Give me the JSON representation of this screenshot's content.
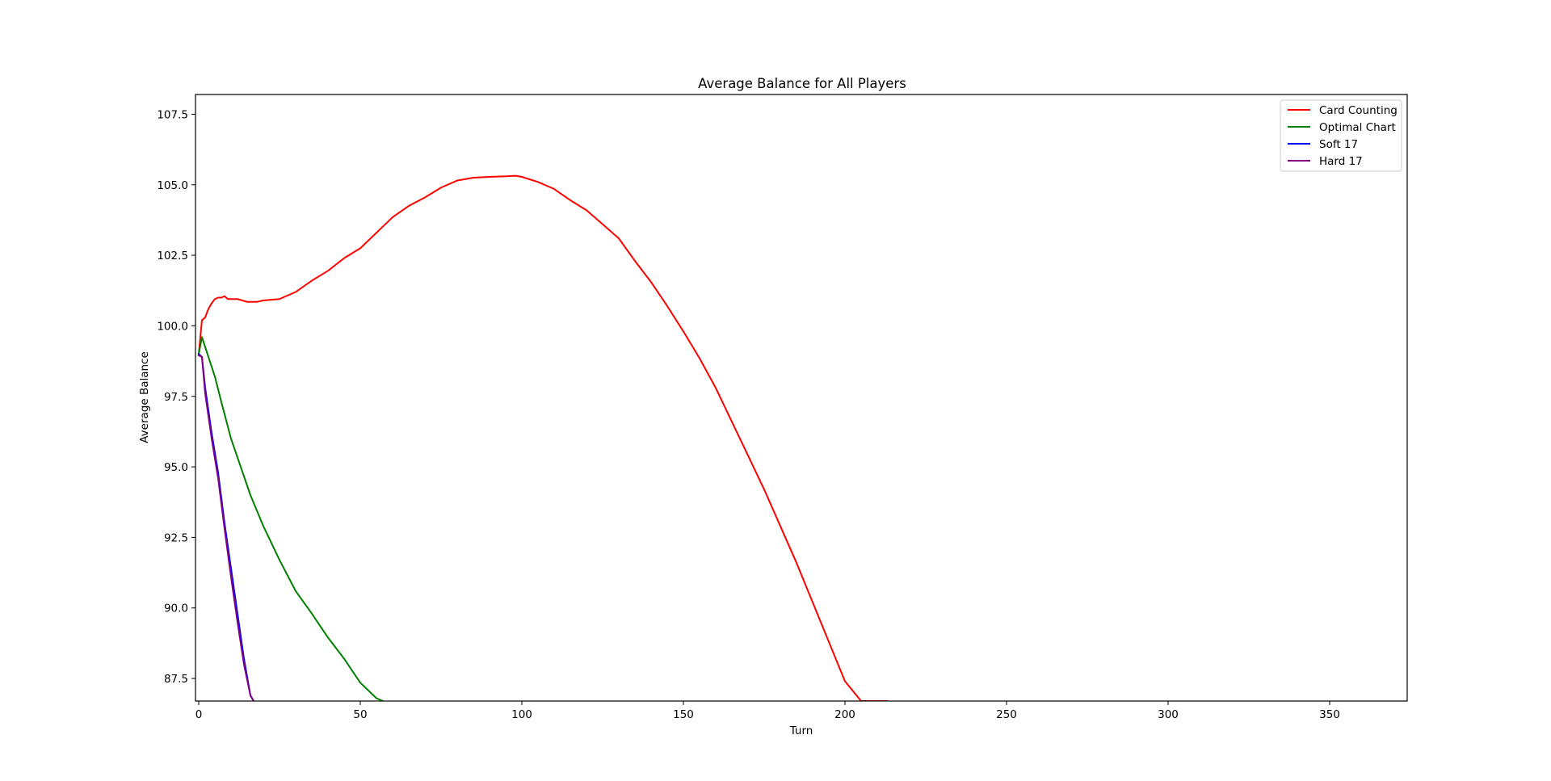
{
  "chart_data": {
    "type": "line",
    "title": "Average Balance for All Players",
    "xlabel": "Turn",
    "ylabel": "Average Balance",
    "xlim": [
      -1,
      374
    ],
    "ylim": [
      86.7,
      108.2
    ],
    "xticks": [
      0,
      50,
      100,
      150,
      200,
      250,
      300,
      350
    ],
    "yticks": [
      87.5,
      90.0,
      92.5,
      95.0,
      97.5,
      100.0,
      102.5,
      105.0,
      107.5
    ],
    "xtick_labels": [
      "0",
      "50",
      "100",
      "150",
      "200",
      "250",
      "300",
      "350"
    ],
    "ytick_labels": [
      "87.5",
      "90.0",
      "92.5",
      "95.0",
      "97.5",
      "100.0",
      "102.5",
      "105.0",
      "107.5"
    ],
    "grid": false,
    "legend_position": "top-right",
    "series": [
      {
        "name": "Card Counting",
        "color": "#ff0000",
        "x": [
          0,
          1,
          2,
          3,
          4,
          5,
          6,
          7,
          8,
          9,
          10,
          12,
          15,
          18,
          20,
          25,
          28,
          30,
          35,
          40,
          45,
          50,
          55,
          60,
          65,
          70,
          75,
          80,
          85,
          90,
          95,
          98,
          100,
          105,
          110,
          115,
          120,
          125,
          130,
          135,
          140,
          145,
          150,
          155,
          160,
          165,
          170,
          175,
          180,
          185,
          190,
          195,
          200,
          205,
          210,
          213
        ],
        "y": [
          99.0,
          100.2,
          100.3,
          100.6,
          100.8,
          100.95,
          101.0,
          101.0,
          101.05,
          100.95,
          100.95,
          100.95,
          100.85,
          100.85,
          100.9,
          100.95,
          101.1,
          101.2,
          101.6,
          101.95,
          102.4,
          102.75,
          103.3,
          103.85,
          104.25,
          104.55,
          104.9,
          105.15,
          105.25,
          105.28,
          105.3,
          105.32,
          105.28,
          105.1,
          104.85,
          104.45,
          104.1,
          103.6,
          103.1,
          102.3,
          101.55,
          100.7,
          99.8,
          98.85,
          97.8,
          96.6,
          95.4,
          94.2,
          92.9,
          91.6,
          90.2,
          88.8,
          87.4,
          86.7,
          86.7,
          86.7
        ]
      },
      {
        "name": "Optimal Chart",
        "color": "#008000",
        "x": [
          0,
          1,
          3,
          5,
          7,
          10,
          13,
          16,
          20,
          25,
          30,
          35,
          40,
          45,
          50,
          55,
          57
        ],
        "y": [
          99.0,
          99.6,
          98.9,
          98.2,
          97.3,
          96.0,
          95.0,
          94.0,
          92.9,
          91.7,
          90.6,
          89.8,
          88.95,
          88.2,
          87.35,
          86.8,
          86.7
        ]
      },
      {
        "name": "Soft 17",
        "color": "#0000ff",
        "x": [
          0,
          1,
          2,
          4,
          6,
          8,
          10,
          12,
          14,
          16,
          17
        ],
        "y": [
          99.0,
          98.9,
          97.8,
          96.2,
          94.8,
          93.0,
          91.4,
          89.8,
          88.2,
          86.9,
          86.7
        ]
      },
      {
        "name": "Hard 17",
        "color": "#800080",
        "x": [
          0,
          1,
          2,
          4,
          6,
          8,
          10,
          12,
          14,
          16,
          17
        ],
        "y": [
          98.95,
          98.9,
          97.6,
          96.0,
          94.6,
          92.8,
          91.1,
          89.5,
          88.0,
          86.9,
          86.7
        ]
      }
    ]
  }
}
